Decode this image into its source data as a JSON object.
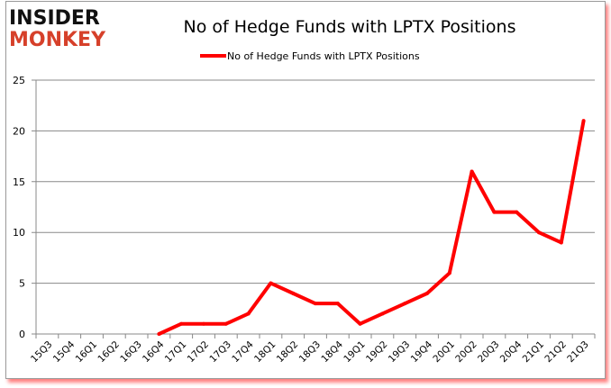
{
  "logo": {
    "line1": "INSIDER",
    "line2": "MONKEY"
  },
  "colors": {
    "series": "#ff0000",
    "logo_top": "#111111",
    "logo_bottom": "#d6402a",
    "grid": "#888888"
  },
  "chart_data": {
    "type": "line",
    "title": "No of Hedge Funds with LPTX Positions",
    "legend_position": "top",
    "grid": true,
    "xlabel": "",
    "ylabel": "",
    "ylim": [
      0,
      25
    ],
    "yticks": [
      0,
      5,
      10,
      15,
      20,
      25
    ],
    "categories": [
      "15Q3",
      "15Q4",
      "16Q1",
      "16Q2",
      "16Q3",
      "16Q4",
      "17Q1",
      "17Q2",
      "17Q3",
      "17Q4",
      "18Q1",
      "18Q2",
      "18Q3",
      "18Q4",
      "19Q1",
      "19Q2",
      "19Q3",
      "19Q4",
      "20Q1",
      "20Q2",
      "20Q3",
      "20Q4",
      "21Q1",
      "21Q2",
      "21Q3"
    ],
    "series": [
      {
        "name": "No of Hedge Funds with LPTX Positions",
        "values": [
          null,
          null,
          null,
          null,
          null,
          0,
          1,
          1,
          1,
          2,
          5,
          4,
          3,
          3,
          1,
          2,
          3,
          4,
          6,
          16,
          12,
          12,
          10,
          9,
          21
        ]
      }
    ]
  }
}
